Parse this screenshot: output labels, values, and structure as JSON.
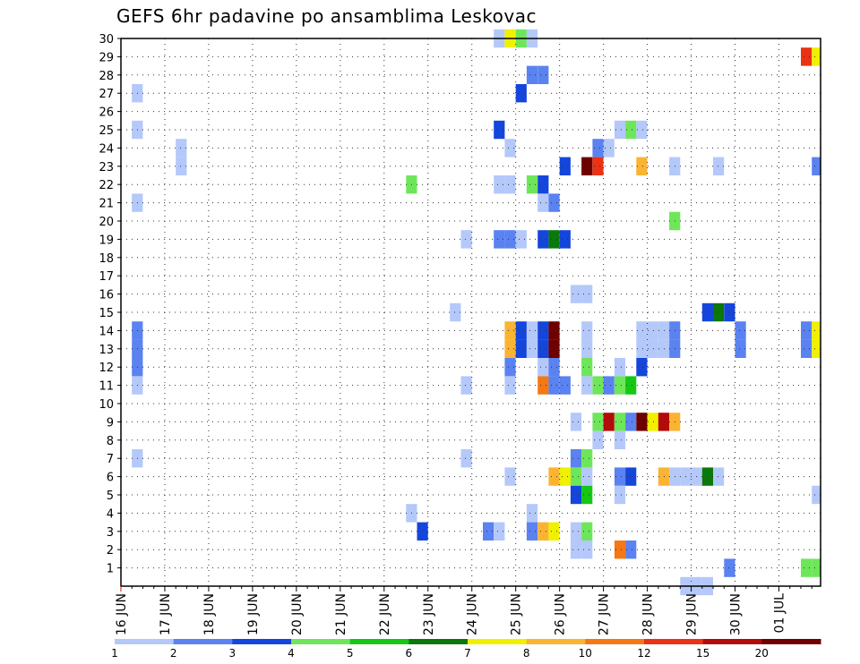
{
  "chart_data": {
    "type": "heatmap",
    "title": "GEFS 6hr padavine po ansamblima Leskovac",
    "xlabel": "",
    "ylabel": "",
    "x_tick_labels": [
      "16 JUN",
      "17 JUN",
      "18 JUN",
      "19 JUN",
      "20 JUN",
      "21 JUN",
      "22 JUN",
      "23 JUN",
      "24 JUN",
      "25 JUN",
      "26 JUN",
      "27 JUN",
      "28 JUN",
      "29 JUN",
      "30 JUN",
      "01 JUL"
    ],
    "x_range_days": [
      16,
      31.95
    ],
    "y_tick_labels": [
      1,
      2,
      3,
      4,
      5,
      6,
      7,
      8,
      9,
      10,
      11,
      12,
      13,
      14,
      15,
      16,
      17,
      18,
      19,
      20,
      21,
      22,
      23,
      24,
      25,
      26,
      27,
      28,
      29,
      30
    ],
    "y_range": [
      0,
      30
    ],
    "grid": true,
    "legend_position": "bottom",
    "color_levels": [
      {
        "label": "1",
        "color": "#b4c8fa"
      },
      {
        "label": "2",
        "color": "#5a82f0"
      },
      {
        "label": "3",
        "color": "#1446dc"
      },
      {
        "label": "4",
        "color": "#6ee65a"
      },
      {
        "label": "5",
        "color": "#14c814"
      },
      {
        "label": "6",
        "color": "#0a780a"
      },
      {
        "label": "7",
        "color": "#f0f000"
      },
      {
        "label": "8",
        "color": "#fab432"
      },
      {
        "label": "10",
        "color": "#f57814"
      },
      {
        "label": "12",
        "color": "#eb3214"
      },
      {
        "label": "15",
        "color": "#b40a0a"
      },
      {
        "label": "20",
        "color": "#6e0000"
      }
    ],
    "cells": [
      {
        "member": 30,
        "day": 24.5,
        "level": 0
      },
      {
        "member": 30,
        "day": 24.75,
        "level": 6
      },
      {
        "member": 30,
        "day": 25.0,
        "level": 3
      },
      {
        "member": 30,
        "day": 25.25,
        "level": 0
      },
      {
        "member": 29,
        "day": 31.5,
        "level": 9
      },
      {
        "member": 29,
        "day": 31.75,
        "level": 6
      },
      {
        "member": 28,
        "day": 25.25,
        "level": 1
      },
      {
        "member": 28,
        "day": 25.5,
        "level": 1
      },
      {
        "member": 27,
        "day": 16.25,
        "level": 0
      },
      {
        "member": 27,
        "day": 25.0,
        "level": 2
      },
      {
        "member": 25,
        "day": 16.25,
        "level": 0
      },
      {
        "member": 25,
        "day": 24.5,
        "level": 2
      },
      {
        "member": 25,
        "day": 27.25,
        "level": 0
      },
      {
        "member": 25,
        "day": 27.5,
        "level": 3
      },
      {
        "member": 25,
        "day": 27.75,
        "level": 0
      },
      {
        "member": 24,
        "day": 17.25,
        "level": 0
      },
      {
        "member": 24,
        "day": 24.75,
        "level": 0
      },
      {
        "member": 24,
        "day": 26.75,
        "level": 1
      },
      {
        "member": 24,
        "day": 27.0,
        "level": 0
      },
      {
        "member": 23,
        "day": 17.25,
        "level": 0
      },
      {
        "member": 23,
        "day": 26.0,
        "level": 2
      },
      {
        "member": 23,
        "day": 26.5,
        "level": 11
      },
      {
        "member": 23,
        "day": 26.75,
        "level": 9
      },
      {
        "member": 23,
        "day": 27.75,
        "level": 7
      },
      {
        "member": 23,
        "day": 28.5,
        "level": 0
      },
      {
        "member": 23,
        "day": 29.5,
        "level": 0
      },
      {
        "member": 23,
        "day": 31.75,
        "level": 1
      },
      {
        "member": 22,
        "day": 22.5,
        "level": 3
      },
      {
        "member": 22,
        "day": 24.5,
        "level": 0
      },
      {
        "member": 22,
        "day": 24.75,
        "level": 0
      },
      {
        "member": 22,
        "day": 25.25,
        "level": 3
      },
      {
        "member": 22,
        "day": 25.5,
        "level": 2
      },
      {
        "member": 21,
        "day": 16.25,
        "level": 0
      },
      {
        "member": 21,
        "day": 25.5,
        "level": 0
      },
      {
        "member": 21,
        "day": 25.75,
        "level": 1
      },
      {
        "member": 20,
        "day": 28.5,
        "level": 3
      },
      {
        "member": 19,
        "day": 23.75,
        "level": 0
      },
      {
        "member": 19,
        "day": 24.5,
        "level": 1
      },
      {
        "member": 19,
        "day": 24.75,
        "level": 1
      },
      {
        "member": 19,
        "day": 25.0,
        "level": 0
      },
      {
        "member": 19,
        "day": 25.5,
        "level": 2
      },
      {
        "member": 19,
        "day": 25.75,
        "level": 5
      },
      {
        "member": 19,
        "day": 26.0,
        "level": 2
      },
      {
        "member": 16,
        "day": 26.25,
        "level": 0
      },
      {
        "member": 16,
        "day": 26.5,
        "level": 0
      },
      {
        "member": 15,
        "day": 23.5,
        "level": 0
      },
      {
        "member": 15,
        "day": 29.25,
        "level": 2
      },
      {
        "member": 15,
        "day": 29.5,
        "level": 5
      },
      {
        "member": 15,
        "day": 29.75,
        "level": 2
      },
      {
        "member": 14,
        "day": 16.25,
        "level": 1
      },
      {
        "member": 14,
        "day": 24.75,
        "level": 7
      },
      {
        "member": 14,
        "day": 25.0,
        "level": 2
      },
      {
        "member": 14,
        "day": 25.25,
        "level": 0
      },
      {
        "member": 14,
        "day": 25.5,
        "level": 2
      },
      {
        "member": 14,
        "day": 25.75,
        "level": 11
      },
      {
        "member": 14,
        "day": 26.5,
        "level": 0
      },
      {
        "member": 14,
        "day": 27.75,
        "level": 0
      },
      {
        "member": 14,
        "day": 28.0,
        "level": 0
      },
      {
        "member": 14,
        "day": 28.25,
        "level": 0
      },
      {
        "member": 14,
        "day": 28.5,
        "level": 1
      },
      {
        "member": 14,
        "day": 30.0,
        "level": 1
      },
      {
        "member": 14,
        "day": 31.5,
        "level": 1
      },
      {
        "member": 14,
        "day": 31.75,
        "level": 6
      },
      {
        "member": 13,
        "day": 16.25,
        "level": 1
      },
      {
        "member": 13,
        "day": 24.75,
        "level": 7
      },
      {
        "member": 13,
        "day": 25.0,
        "level": 2
      },
      {
        "member": 13,
        "day": 25.25,
        "level": 0
      },
      {
        "member": 13,
        "day": 25.5,
        "level": 2
      },
      {
        "member": 13,
        "day": 25.75,
        "level": 11
      },
      {
        "member": 13,
        "day": 26.5,
        "level": 0
      },
      {
        "member": 13,
        "day": 27.75,
        "level": 0
      },
      {
        "member": 13,
        "day": 28.0,
        "level": 0
      },
      {
        "member": 13,
        "day": 28.25,
        "level": 0
      },
      {
        "member": 13,
        "day": 28.5,
        "level": 1
      },
      {
        "member": 13,
        "day": 30.0,
        "level": 1
      },
      {
        "member": 13,
        "day": 31.5,
        "level": 1
      },
      {
        "member": 13,
        "day": 31.75,
        "level": 6
      },
      {
        "member": 12,
        "day": 16.25,
        "level": 1
      },
      {
        "member": 12,
        "day": 24.75,
        "level": 1
      },
      {
        "member": 12,
        "day": 25.5,
        "level": 0
      },
      {
        "member": 12,
        "day": 25.75,
        "level": 1
      },
      {
        "member": 12,
        "day": 26.5,
        "level": 3
      },
      {
        "member": 12,
        "day": 27.25,
        "level": 0
      },
      {
        "member": 12,
        "day": 27.75,
        "level": 2
      },
      {
        "member": 11,
        "day": 16.25,
        "level": 0
      },
      {
        "member": 11,
        "day": 23.75,
        "level": 0
      },
      {
        "member": 11,
        "day": 24.75,
        "level": 0
      },
      {
        "member": 11,
        "day": 25.5,
        "level": 8
      },
      {
        "member": 11,
        "day": 25.75,
        "level": 1
      },
      {
        "member": 11,
        "day": 26.0,
        "level": 1
      },
      {
        "member": 11,
        "day": 26.5,
        "level": 0
      },
      {
        "member": 11,
        "day": 26.75,
        "level": 3
      },
      {
        "member": 11,
        "day": 27.0,
        "level": 1
      },
      {
        "member": 11,
        "day": 27.25,
        "level": 3
      },
      {
        "member": 11,
        "day": 27.5,
        "level": 4
      },
      {
        "member": 9,
        "day": 26.25,
        "level": 0
      },
      {
        "member": 9,
        "day": 26.75,
        "level": 3
      },
      {
        "member": 9,
        "day": 27.0,
        "level": 10
      },
      {
        "member": 9,
        "day": 27.25,
        "level": 3
      },
      {
        "member": 9,
        "day": 27.5,
        "level": 1
      },
      {
        "member": 9,
        "day": 27.75,
        "level": 11
      },
      {
        "member": 9,
        "day": 28.0,
        "level": 6
      },
      {
        "member": 9,
        "day": 28.25,
        "level": 10
      },
      {
        "member": 9,
        "day": 28.5,
        "level": 7
      },
      {
        "member": 8,
        "day": 26.75,
        "level": 0
      },
      {
        "member": 8,
        "day": 27.25,
        "level": 0
      },
      {
        "member": 7,
        "day": 16.25,
        "level": 0
      },
      {
        "member": 7,
        "day": 23.75,
        "level": 0
      },
      {
        "member": 7,
        "day": 26.25,
        "level": 1
      },
      {
        "member": 7,
        "day": 26.5,
        "level": 3
      },
      {
        "member": 6,
        "day": 24.75,
        "level": 0
      },
      {
        "member": 6,
        "day": 25.75,
        "level": 7
      },
      {
        "member": 6,
        "day": 26.0,
        "level": 6
      },
      {
        "member": 6,
        "day": 26.25,
        "level": 3
      },
      {
        "member": 6,
        "day": 26.5,
        "level": 0
      },
      {
        "member": 6,
        "day": 27.25,
        "level": 1
      },
      {
        "member": 6,
        "day": 27.5,
        "level": 2
      },
      {
        "member": 6,
        "day": 28.25,
        "level": 7
      },
      {
        "member": 6,
        "day": 28.5,
        "level": 0
      },
      {
        "member": 6,
        "day": 28.75,
        "level": 0
      },
      {
        "member": 6,
        "day": 29.0,
        "level": 0
      },
      {
        "member": 6,
        "day": 29.25,
        "level": 5
      },
      {
        "member": 6,
        "day": 29.5,
        "level": 0
      },
      {
        "member": 5,
        "day": 26.25,
        "level": 2
      },
      {
        "member": 5,
        "day": 26.5,
        "level": 4
      },
      {
        "member": 5,
        "day": 27.25,
        "level": 0
      },
      {
        "member": 5,
        "day": 31.75,
        "level": 0
      },
      {
        "member": 4,
        "day": 22.5,
        "level": 0
      },
      {
        "member": 4,
        "day": 25.25,
        "level": 0
      },
      {
        "member": 3,
        "day": 22.75,
        "level": 2
      },
      {
        "member": 3,
        "day": 24.25,
        "level": 1
      },
      {
        "member": 3,
        "day": 24.5,
        "level": 0
      },
      {
        "member": 3,
        "day": 25.25,
        "level": 1
      },
      {
        "member": 3,
        "day": 25.5,
        "level": 7
      },
      {
        "member": 3,
        "day": 25.75,
        "level": 6
      },
      {
        "member": 3,
        "day": 26.25,
        "level": 0
      },
      {
        "member": 3,
        "day": 26.5,
        "level": 3
      },
      {
        "member": 2,
        "day": 26.25,
        "level": 0
      },
      {
        "member": 2,
        "day": 26.5,
        "level": 0
      },
      {
        "member": 2,
        "day": 27.25,
        "level": 8
      },
      {
        "member": 2,
        "day": 27.5,
        "level": 1
      },
      {
        "member": 1,
        "day": 29.75,
        "level": 1
      },
      {
        "member": 1,
        "day": 31.5,
        "level": 3
      },
      {
        "member": 1,
        "day": 31.75,
        "level": 3
      },
      {
        "member": 0,
        "day": 28.75,
        "level": 0
      },
      {
        "member": 0,
        "day": 29.0,
        "level": 0
      },
      {
        "member": 0,
        "day": 29.25,
        "level": 0
      }
    ]
  }
}
